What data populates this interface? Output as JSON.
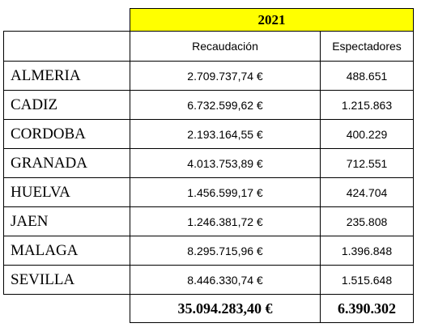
{
  "header": {
    "year": "2021"
  },
  "columns": [
    "Recaudación",
    "Espectadores"
  ],
  "rows": [
    [
      "ALMERIA",
      "2.709.737,74 €",
      "488.651"
    ],
    [
      "CADIZ",
      "6.732.599,62 €",
      "1.215.863"
    ],
    [
      "CORDOBA",
      "2.193.164,55 €",
      "400.229"
    ],
    [
      "GRANADA",
      "4.013.753,89 €",
      "712.551"
    ],
    [
      "HUELVA",
      "1.456.599,17 €",
      "424.704"
    ],
    [
      "JAEN",
      "1.246.381,72 €",
      "235.808"
    ],
    [
      "MALAGA",
      "8.295.715,96 €",
      "1.396.848"
    ],
    [
      "SEVILLA",
      "8.446.330,74 €",
      "1.515.648"
    ]
  ],
  "total": [
    "35.094.283,40 €",
    "6.390.302"
  ]
}
